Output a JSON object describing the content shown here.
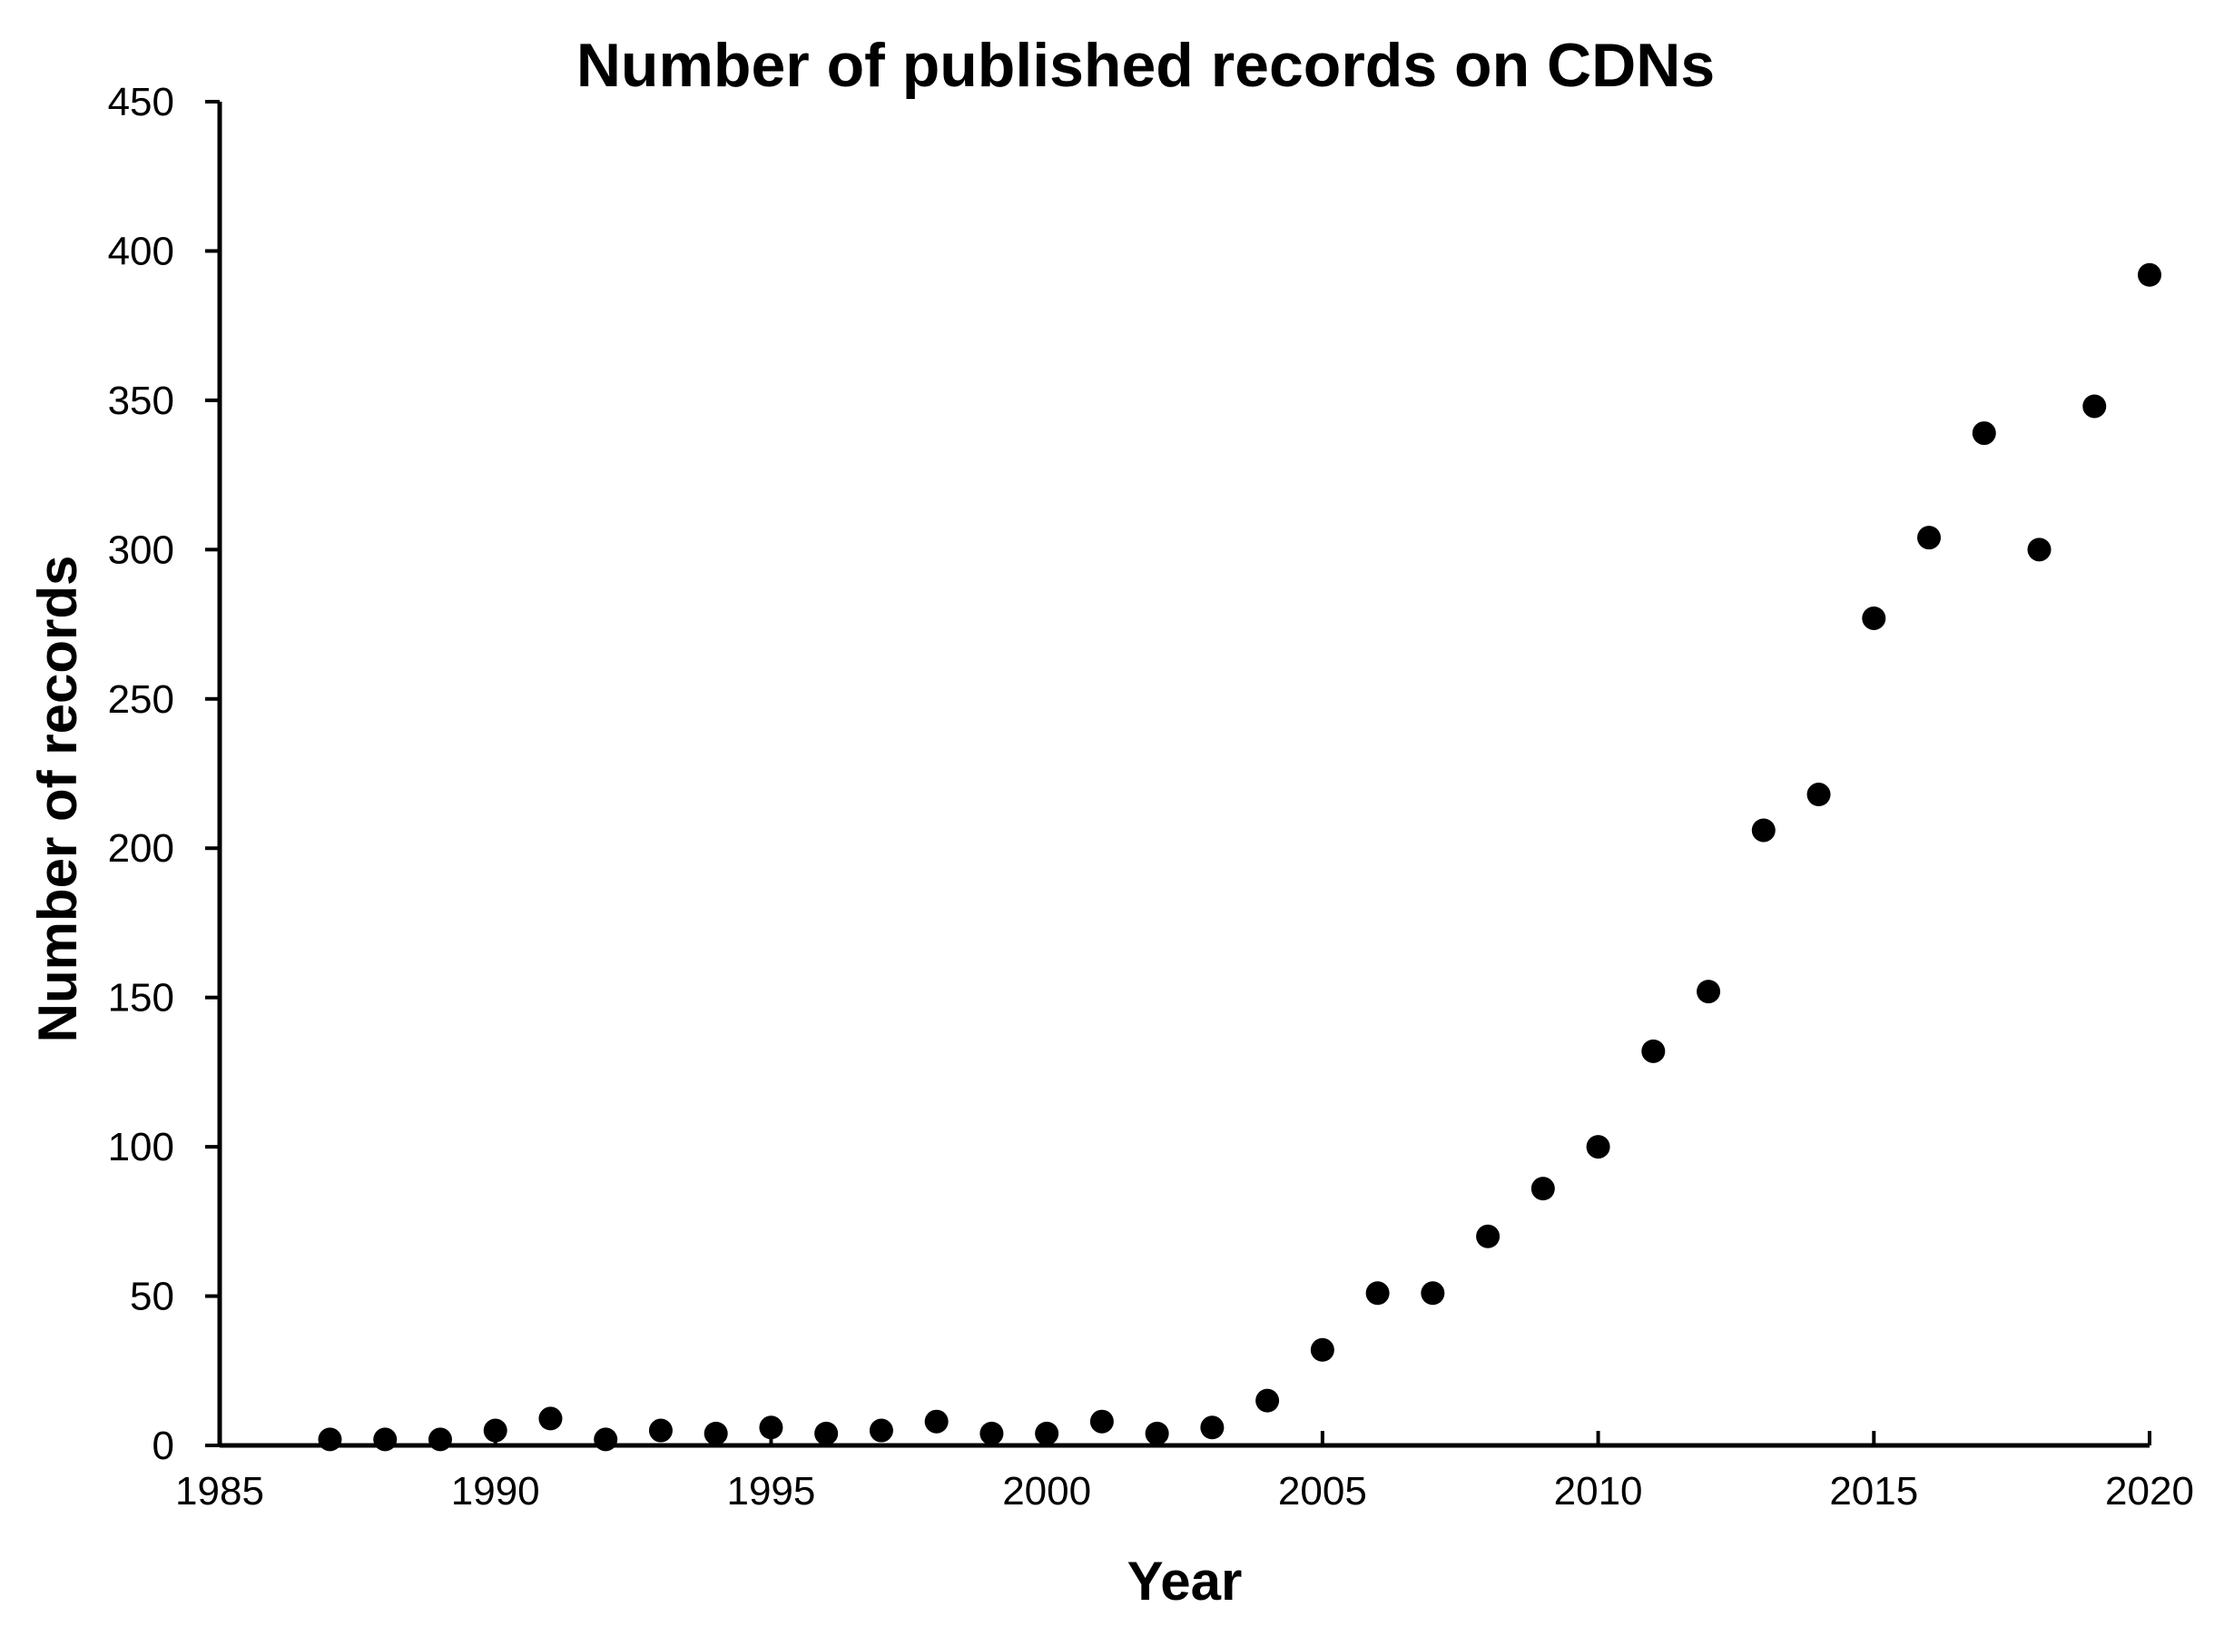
{
  "chart_data": {
    "type": "scatter",
    "title": "Number of published records on CDNs",
    "xlabel": "Year",
    "ylabel": "Number of records",
    "xlim": [
      1985,
      2020
    ],
    "ylim": [
      0,
      450
    ],
    "x_ticks": [
      1985,
      1990,
      1995,
      2000,
      2005,
      2010,
      2015,
      2020
    ],
    "y_ticks": [
      0,
      50,
      100,
      150,
      200,
      250,
      300,
      350,
      400,
      450
    ],
    "grid": false,
    "legend": "none",
    "marker_color": "#000000",
    "series": [
      {
        "x": [
          1987,
          1988,
          1989,
          1990,
          1991,
          1992,
          1993,
          1994,
          1995,
          1996,
          1997,
          1998,
          1999,
          2000,
          2001,
          2002,
          2003,
          2004,
          2005,
          2006,
          2007,
          2008,
          2009,
          2010,
          2011,
          2012,
          2013,
          2014,
          2015,
          2016,
          2017,
          2018,
          2019,
          2020
        ],
        "y": [
          2,
          2,
          2,
          5,
          9,
          2,
          5,
          4,
          6,
          4,
          5,
          8,
          4,
          4,
          8,
          4,
          6,
          15,
          32,
          51,
          51,
          70,
          86,
          100,
          132,
          152,
          206,
          218,
          277,
          304,
          339,
          300,
          348,
          392
        ]
      }
    ]
  }
}
